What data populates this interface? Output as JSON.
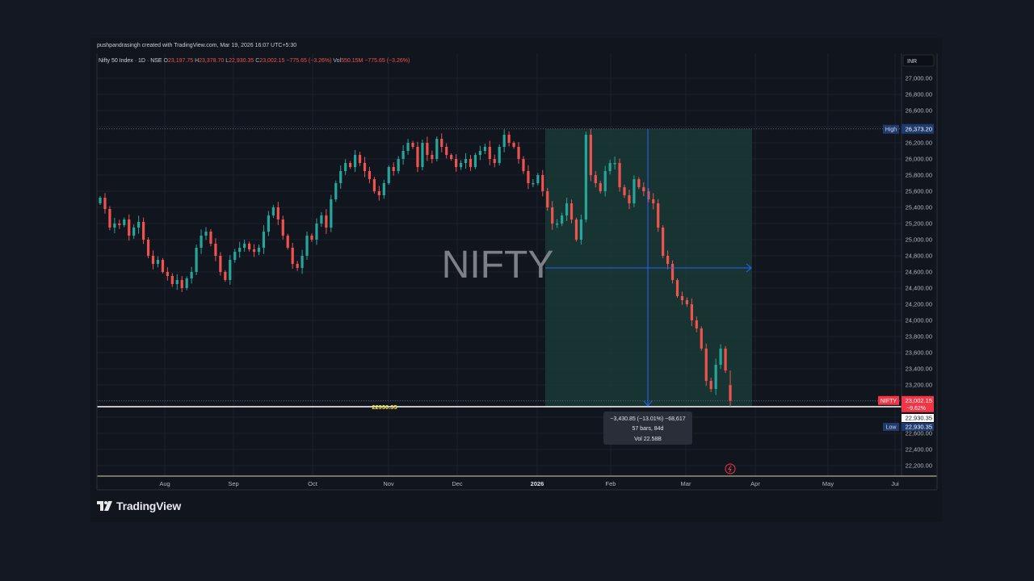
{
  "credit": "pushpandrasingh created with TradingView.com, Mar 19, 2026 16:07 UTC+5:30",
  "legend": {
    "symbol": "Nifty 50 Index · 1D · NSE",
    "open_label": "O",
    "open": "23,197.75",
    "high_label": "H",
    "high": "23,378.70",
    "low_label": "L",
    "low": "22,930.35",
    "close_label": "C",
    "close": "23,002.15",
    "change": "−775.65 (−3.26%)",
    "vol_label": "Vol",
    "vol": "550.15M",
    "vol_change": "−775.65 (−3.26%)"
  },
  "currency": "INR",
  "watermark": "NIFTY",
  "brand": "TradingView",
  "colors": {
    "up": "#26a69a",
    "down": "#ef5350",
    "background": "#11151e",
    "range_fill": "#1a3a36",
    "measure": "#2962ff",
    "hline": "#ffffff",
    "hline_label": "#f0e040",
    "badge": "#f23645"
  },
  "chart_data": {
    "type": "candlestick",
    "symbol": "NIFTY",
    "x_ticks": [
      "Aug",
      "Sep",
      "Oct",
      "Nov",
      "Dec",
      "2026",
      "Feb",
      "Mar",
      "Apr",
      "May",
      "Jui"
    ],
    "y_ticks": [
      22200,
      22400,
      22600,
      22800,
      23000,
      23200,
      23400,
      23600,
      23800,
      24000,
      24200,
      24400,
      24600,
      24800,
      25000,
      25200,
      25400,
      25600,
      25800,
      26000,
      26200,
      26400,
      26600,
      26800,
      27000
    ],
    "y_tick_labels": [
      "22,200.00",
      "22,400.00",
      "22,600.00",
      "22,800.00",
      "23,000.00",
      "23,200.00",
      "23,400.00",
      "23,600.00",
      "23,800.00",
      "24,000.00",
      "24,200.00",
      "24,400.00",
      "24,600.00",
      "24,800.00",
      "25,000.00",
      "25,200.00",
      "25,400.00",
      "25,600.00",
      "25,800.00",
      "26,000.00",
      "26,200.00",
      "26,400.00",
      "26,600.00",
      "26,800.00",
      "27,000.00"
    ],
    "ylim": [
      22100,
      27100
    ],
    "grid": true,
    "closes": [
      25520,
      25380,
      25150,
      25200,
      25180,
      25250,
      25050,
      25150,
      25220,
      25000,
      24800,
      24700,
      24750,
      24600,
      24550,
      24450,
      24500,
      24400,
      24520,
      24600,
      24900,
      25050,
      25100,
      24950,
      24800,
      24600,
      24500,
      24750,
      24850,
      24900,
      24950,
      24880,
      24850,
      24900,
      25100,
      25300,
      25400,
      25250,
      25050,
      24900,
      24700,
      24650,
      24800,
      25050,
      25000,
      25200,
      25300,
      25150,
      25500,
      25700,
      25850,
      25950,
      25900,
      26050,
      25950,
      25850,
      25750,
      25600,
      25550,
      25700,
      25900,
      25850,
      26000,
      26100,
      26200,
      26150,
      25900,
      26200,
      26050,
      26000,
      26250,
      26150,
      26050,
      26000,
      25900,
      25950,
      26000,
      25900,
      26050,
      26100,
      26150,
      26000,
      25950,
      26150,
      26300,
      26200,
      26150,
      26000,
      25850,
      25700,
      25700,
      25800,
      25600,
      25400,
      25200,
      25200,
      25300,
      25450,
      25250,
      25000,
      25250,
      26300,
      25800,
      25700,
      25600,
      25850,
      25950,
      25950,
      25650,
      25550,
      25450,
      25750,
      25650,
      25600,
      25500,
      25450,
      25150,
      24800,
      24700,
      24500,
      24300,
      24250,
      24200,
      24000,
      23900,
      23650,
      23250,
      23150,
      23450,
      23650,
      23378,
      23002
    ],
    "high": {
      "value": 26373.2,
      "label": "High",
      "text": "26,373.20"
    },
    "low": {
      "value": 22930.35,
      "label": "Low",
      "text": "22,930.35"
    },
    "last": {
      "value": 23002.15,
      "text": "23,002.15",
      "label": "NIFTY",
      "pct": "−9.62%"
    },
    "horizontal_line": {
      "value": 22930.35,
      "text": "22930.35",
      "tag": "22,930.35"
    },
    "measure": {
      "change": "−3,430.85 (−13.01%) −68,617",
      "bars": "57 bars, 84d",
      "vol": "Vol 22.58B"
    }
  }
}
